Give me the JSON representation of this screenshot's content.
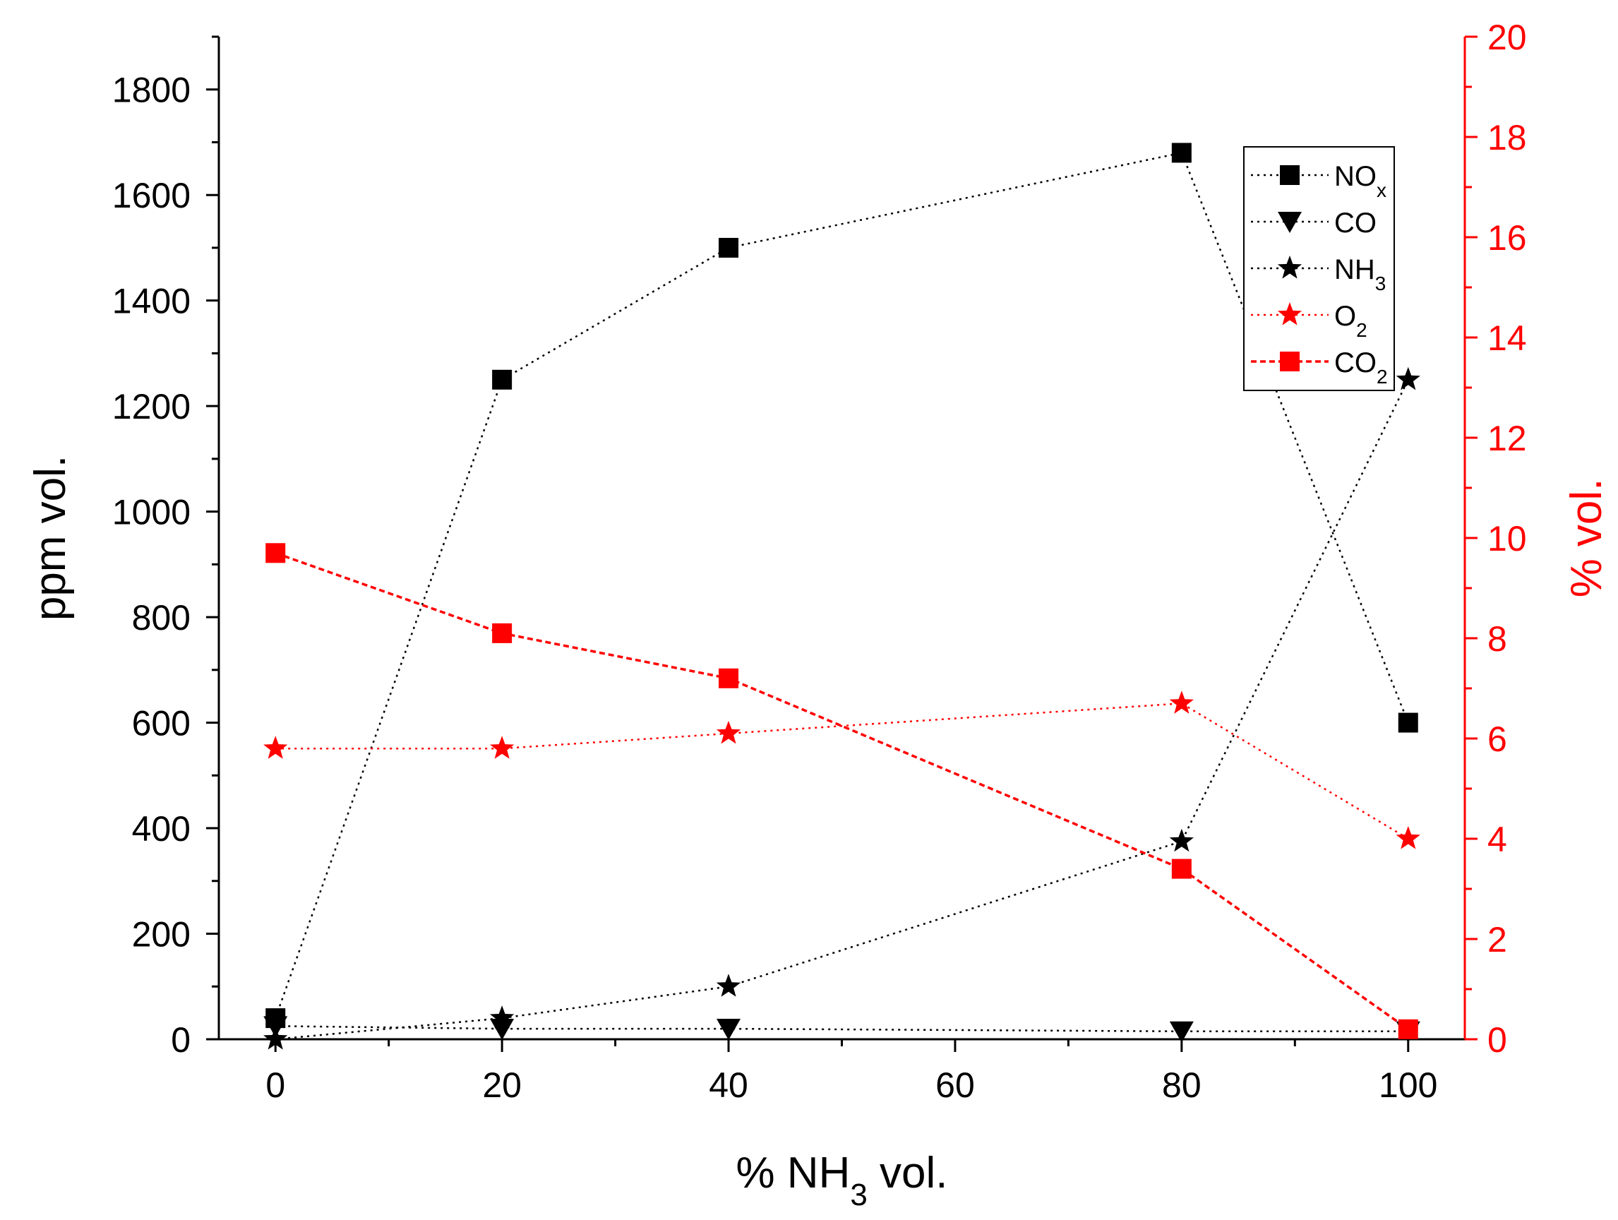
{
  "chart_data": {
    "type": "line",
    "title": "",
    "x": [
      0,
      20,
      40,
      80,
      100
    ],
    "xlabel": {
      "pre": "% NH",
      "sub": "3",
      "post": " vol."
    },
    "xlim": [
      -5,
      105
    ],
    "xticks": [
      "0",
      "20",
      "40",
      "60",
      "80",
      "100"
    ],
    "xtick_values": [
      0,
      20,
      40,
      60,
      80,
      100
    ],
    "y_left": {
      "label": "ppm vol.",
      "lim": [
        0,
        1900
      ],
      "ticks": [
        "0",
        "200",
        "400",
        "600",
        "800",
        "1000",
        "1200",
        "1400",
        "1600",
        "1800"
      ],
      "tick_values": [
        0,
        200,
        400,
        600,
        800,
        1000,
        1200,
        1400,
        1600,
        1800
      ]
    },
    "y_right": {
      "label": "% vol.",
      "lim": [
        0,
        20
      ],
      "ticks": [
        "0",
        "2",
        "4",
        "6",
        "8",
        "10",
        "12",
        "14",
        "16",
        "18",
        "20"
      ],
      "tick_values": [
        0,
        2,
        4,
        6,
        8,
        10,
        12,
        14,
        16,
        18,
        20
      ]
    },
    "series": [
      {
        "name": "NOx",
        "base": "NO",
        "sub": "x",
        "axis": "left",
        "marker": "square",
        "color": "#000000",
        "line": "dotted",
        "values": [
          40,
          1250,
          1500,
          1680,
          600
        ]
      },
      {
        "name": "CO",
        "base": "CO",
        "sub": "",
        "axis": "left",
        "marker": "triangle-down",
        "color": "#000000",
        "line": "dotted",
        "values": [
          25,
          20,
          20,
          15,
          15
        ]
      },
      {
        "name": "NH3",
        "base": "NH",
        "sub": "3",
        "axis": "left",
        "marker": "star",
        "color": "#000000",
        "line": "dotted",
        "values": [
          0,
          40,
          100,
          375,
          1250
        ]
      },
      {
        "name": "O2",
        "base": "O",
        "sub": "2",
        "axis": "right",
        "marker": "star",
        "color": "#ff0000",
        "line": "dotted",
        "values": [
          5.8,
          5.8,
          6.1,
          6.7,
          4.0
        ]
      },
      {
        "name": "CO2",
        "base": "CO",
        "sub": "2",
        "axis": "right",
        "marker": "square",
        "color": "#ff0000",
        "line": "dashed",
        "values": [
          9.7,
          8.1,
          7.2,
          3.4,
          0.2
        ]
      }
    ],
    "legend_position": "top-right"
  }
}
